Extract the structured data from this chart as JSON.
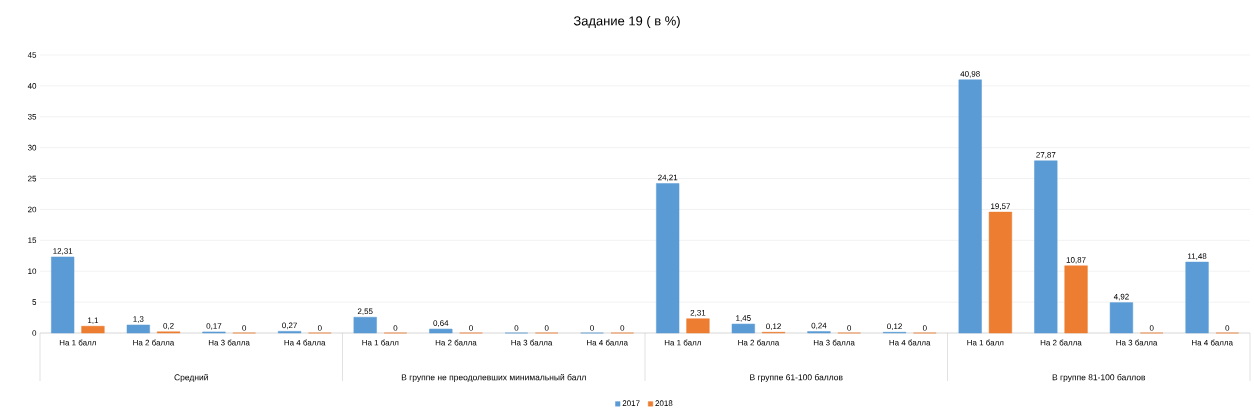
{
  "chart_data": {
    "type": "bar",
    "title": "Задание 19 ( в %)",
    "categories": [
      "На 1 балл",
      "На 2 балла",
      "На 3 балла",
      "На 4 балла",
      "На 1 балл",
      "На 2 балла",
      "На 3 балла",
      "На 4 балла",
      "На 1 балл",
      "На 2 балла",
      "На 3 балла",
      "На 4 балла",
      "На 1 балл",
      "На 2 балла",
      "На 3 балла",
      "На 4 балла"
    ],
    "annotations": [
      "Средний",
      "В группе не преодолевших минимальный балл",
      "В группе 61-100 баллов",
      "В группе 81-100 баллов"
    ],
    "series": [
      {
        "name": "2017",
        "color": "#5b9bd5",
        "values": [
          12.31,
          1.3,
          0.17,
          0.27,
          2.55,
          0.64,
          0,
          0,
          24.21,
          1.45,
          0.24,
          0.12,
          40.98,
          27.87,
          4.92,
          11.48
        ],
        "value_labels": [
          "12,31",
          "1,3",
          "0,17",
          "0,27",
          "2,55",
          "0,64",
          "0",
          "0",
          "24,21",
          "1,45",
          "0,24",
          "0,12",
          "40,98",
          "27,87",
          "4,92",
          "11,48"
        ]
      },
      {
        "name": "2018",
        "color": "#ed7d31",
        "values": [
          1.1,
          0.2,
          0,
          0,
          0,
          0,
          0,
          0,
          2.31,
          0.12,
          0,
          0,
          19.57,
          10.87,
          0,
          0
        ],
        "value_labels": [
          "1,1",
          "0,2",
          "0",
          "0",
          "0",
          "0",
          "0",
          "0",
          "2,31",
          "0,12",
          "0",
          "0",
          "19,57",
          "10,87",
          "0",
          "0"
        ]
      }
    ],
    "ylim": [
      0,
      45
    ],
    "yticks": [
      0,
      5,
      10,
      15,
      20,
      25,
      30,
      35,
      40,
      45
    ],
    "grid": "y",
    "legend": "bottom"
  }
}
